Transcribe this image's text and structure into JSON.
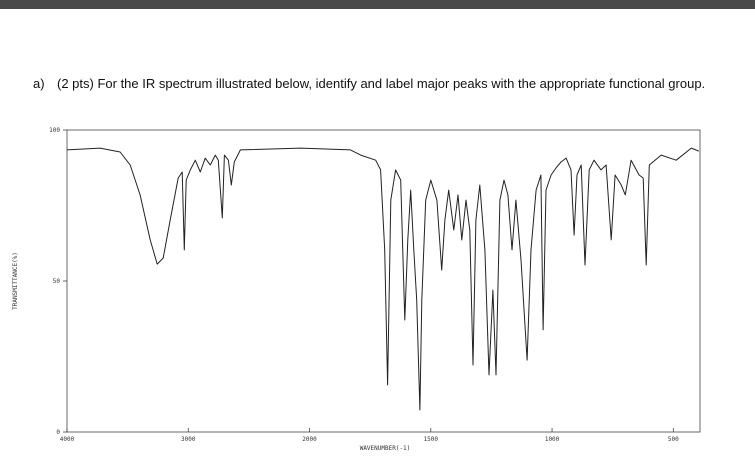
{
  "question": {
    "label": "a)",
    "text": "(2 pts) For the IR spectrum illustrated below, identify and label major peaks with the appropriate functional group."
  },
  "chart_data": {
    "type": "line",
    "xlabel": "WAVENUMBER(-1)",
    "ylabel": "TRANSMITTANCE(%)",
    "xlim": [
      4000,
      390
    ],
    "xticks": [
      4000,
      3000,
      2000,
      1500,
      1000,
      500
    ],
    "ylim": [
      0,
      100
    ],
    "yticks": [
      0,
      50,
      100
    ],
    "color": "#222222",
    "x": [
      4000,
      3727,
      3562,
      3479,
      3397,
      3314,
      3256,
      3207,
      3149,
      3083,
      3050,
      3033,
      3017,
      2983,
      2942,
      2901,
      2860,
      2818,
      2777,
      2752,
      2719,
      2702,
      2669,
      2645,
      2620,
      2570,
      2074,
      1831,
      1789,
      1727,
      1707,
      1690,
      1678,
      1665,
      1645,
      1624,
      1607,
      1595,
      1583,
      1570,
      1558,
      1545,
      1537,
      1521,
      1500,
      1475,
      1455,
      1442,
      1426,
      1405,
      1388,
      1372,
      1355,
      1339,
      1326,
      1314,
      1298,
      1277,
      1260,
      1244,
      1231,
      1215,
      1198,
      1182,
      1165,
      1149,
      1128,
      1103,
      1087,
      1066,
      1046,
      1037,
      1025,
      1004,
      984,
      963,
      942,
      922,
      909,
      897,
      880,
      864,
      847,
      827,
      798,
      777,
      756,
      740,
      715,
      698,
      674,
      641,
      624,
      612,
      599,
      550,
      488,
      426,
      395
    ],
    "values": [
      93.4,
      94,
      92.7,
      88.4,
      78.5,
      63.6,
      55.6,
      57.6,
      70.2,
      84.1,
      86.1,
      60.3,
      83.4,
      86.8,
      90,
      86.1,
      90.7,
      88.4,
      91.7,
      90,
      70.9,
      91.7,
      90,
      81.8,
      89.4,
      93.4,
      94,
      93.4,
      91.7,
      90,
      86.8,
      60.3,
      15.6,
      76.8,
      86.8,
      83.4,
      37.1,
      63.6,
      80.1,
      60.3,
      43.7,
      7.3,
      43.7,
      76.8,
      83.4,
      76.8,
      53.6,
      70.2,
      80.1,
      66.9,
      78.5,
      63.6,
      76.8,
      66.9,
      22.2,
      70.2,
      81.8,
      60.3,
      18.9,
      47,
      18.9,
      76.8,
      83.4,
      78.5,
      60.3,
      76.8,
      57,
      23.8,
      60.3,
      80.1,
      85.1,
      33.8,
      80.1,
      85.1,
      87.4,
      89.4,
      90.7,
      86.8,
      65.2,
      85.1,
      88.4,
      55.3,
      86.8,
      90,
      86.8,
      88.4,
      63.6,
      85.1,
      81.8,
      78.5,
      90,
      85.1,
      84.1,
      55.3,
      88.4,
      91.7,
      90,
      94,
      93
    ]
  }
}
